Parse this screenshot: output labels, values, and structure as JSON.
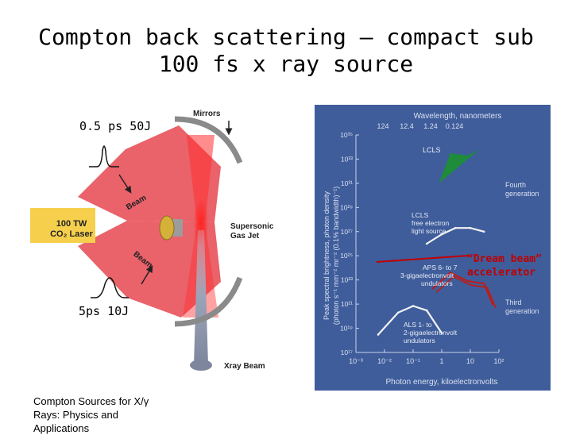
{
  "slide": {
    "title_line1": "Compton back scattering – compact sub",
    "title_line2": "100 fs x ray source",
    "pulse_short_label": "0.5 ps 50J",
    "pulse_long_label": "5ps 10J",
    "source_note": "Compton Sources for X/γ Rays: Physics and Applications"
  },
  "diagram": {
    "mirrors_label": "Mirrors",
    "beam_label_upper": "Beam",
    "beam_label_lower": "Beam",
    "laser_label_line1": "100 TW",
    "laser_label_line2": "CO₂ Laser",
    "gas_jet_line1": "Supersonic",
    "gas_jet_line2": "Gas Jet",
    "xray_label": "Xray Beam",
    "colors": {
      "laser_box": "#f6d04d",
      "beam": "#e8515a",
      "xray": "#9aa3b8"
    }
  },
  "chart_data": {
    "type": "line",
    "top_axis_title": "Wavelength, nanometers",
    "top_ticks": [
      "124",
      "12.4",
      "1.24",
      "0.124"
    ],
    "xlabel": "Photon energy, kiloelectronvolts",
    "ylabel_line1": "Peak spectral brightness, photon density",
    "ylabel_line2": "(photon s⁻¹ mm⁻² mr⁻² (0.1% bandwidth)⁻¹)",
    "x_ticks": [
      "10⁻³",
      "10⁻²",
      "10⁻¹",
      "1",
      "10",
      "10²"
    ],
    "y_ticks": [
      "10¹⁷",
      "10¹⁹",
      "10²¹",
      "10²³",
      "10²⁵",
      "10²⁷",
      "10²⁹",
      "10³¹",
      "10³³",
      "10³⁵"
    ],
    "xlim": [
      0.001,
      100
    ],
    "ylim": [
      1e+17,
      1e+35
    ],
    "scale": "log-log",
    "series": [
      {
        "name": "LCLS",
        "kind": "region",
        "x": [
          0.8,
          2,
          8,
          20
        ],
        "y": [
          1e+31,
          3e+33,
          2e+33,
          6e+33
        ]
      },
      {
        "name": "LCLS free electron light source",
        "x": [
          0.3,
          1,
          3,
          10,
          30
        ],
        "y": [
          1e+26,
          6e+26,
          2e+27,
          2e+27,
          1e+27
        ]
      },
      {
        "name": "APS 6- to 7-gigaelectronvolt undulators",
        "x": [
          0.5,
          2,
          8,
          30,
          60
        ],
        "y": [
          2e+22,
          4e+23,
          8e+22,
          5e+22,
          1e+21
        ]
      },
      {
        "name": "ALS 1- to 2-gigaelectronvolt undulators",
        "x": [
          0.006,
          0.03,
          0.1,
          0.3,
          1
        ],
        "y": [
          3e+18,
          2e+20,
          7e+20,
          3e+20,
          4e+18
        ]
      }
    ],
    "annotations": [
      "Fourth generation",
      "Third generation"
    ],
    "callout": "“Dream beam” accelerator",
    "colors": {
      "background": "#3f5d9b",
      "lcls_region": "#1e8c3a",
      "curve_white": "#f3f3f3",
      "curve_red": "#b81e1e",
      "callout": "#c00000"
    }
  }
}
